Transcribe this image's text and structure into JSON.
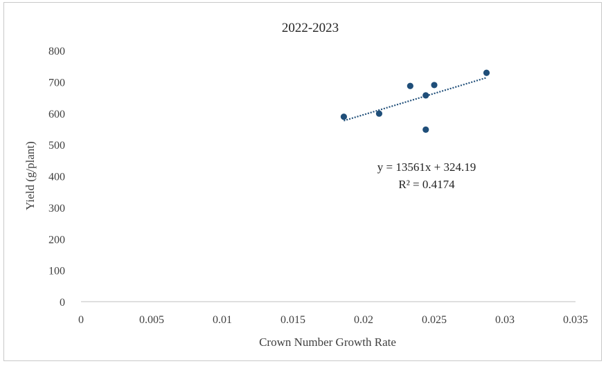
{
  "chart_data": {
    "type": "scatter",
    "title": "2022-2023",
    "xlabel": "Crown Number Growth Rate",
    "ylabel": "Yield  (g/plant)",
    "xlim": [
      0,
      0.035
    ],
    "ylim": [
      0,
      800
    ],
    "x_ticks": [
      "0",
      "0.005",
      "0.01",
      "0.015",
      "0.02",
      "0.025",
      "0.03",
      "0.035"
    ],
    "y_ticks": [
      "0",
      "100",
      "200",
      "300",
      "400",
      "500",
      "600",
      "700",
      "800"
    ],
    "grid": false,
    "points": [
      {
        "x": 0.0186,
        "y": 589
      },
      {
        "x": 0.0211,
        "y": 599
      },
      {
        "x": 0.0233,
        "y": 687
      },
      {
        "x": 0.0244,
        "y": 657
      },
      {
        "x": 0.0244,
        "y": 548
      },
      {
        "x": 0.025,
        "y": 690
      },
      {
        "x": 0.0287,
        "y": 729
      }
    ],
    "trendline": {
      "type": "linear",
      "slope": 13561,
      "intercept": 324.19,
      "x_range": [
        0.0186,
        0.0287
      ],
      "style": "dotted",
      "equation_text": "y = 13561x + 324.19",
      "r2_text": "R² = 0.4174"
    },
    "colors": {
      "point": "#1f4e79",
      "trendline": "#1f4e79",
      "axis": "#bfbfbf"
    }
  }
}
